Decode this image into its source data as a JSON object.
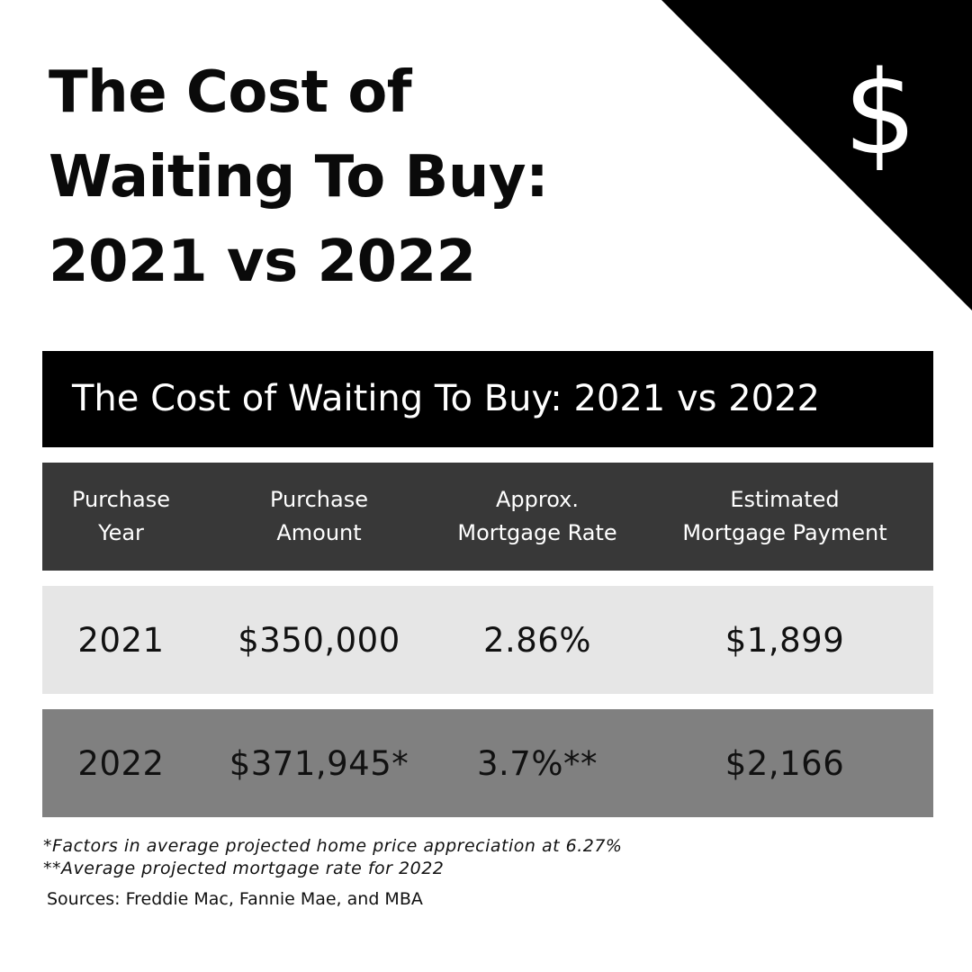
{
  "title": {
    "line1": "The Cost of",
    "line2": "Waiting To Buy:",
    "line3": "2021 vs 2022"
  },
  "corner": {
    "icon": "dollar-icon",
    "glyph": "$",
    "color": "#000000"
  },
  "table": {
    "title": "The Cost of Waiting To Buy: 2021 vs 2022",
    "headers": [
      {
        "line1": "Purchase",
        "line2": "Year"
      },
      {
        "line1": "Purchase",
        "line2": "Amount"
      },
      {
        "line1": "Approx.",
        "line2": "Mortgage Rate"
      },
      {
        "line1": "Estimated",
        "line2": "Mortgage Payment"
      }
    ],
    "rows": [
      {
        "year": "2021",
        "amount": "$350,000",
        "rate": "2.86%",
        "payment": "$1,899"
      },
      {
        "year": "2022",
        "amount": "$371,945*",
        "rate": "3.7%**",
        "payment": "$2,166"
      }
    ]
  },
  "footnotes": {
    "note1": "*Factors in average projected home price appreciation at 6.27%",
    "note2": "**Average projected mortgage rate for 2022",
    "sources": "Sources: Freddie Mac, Fannie Mae, and MBA"
  },
  "colors": {
    "header_bg": "#383838",
    "row_2021_bg": "#e6e6e6",
    "row_2022_bg": "#808080",
    "title_bar_bg": "#000000"
  }
}
